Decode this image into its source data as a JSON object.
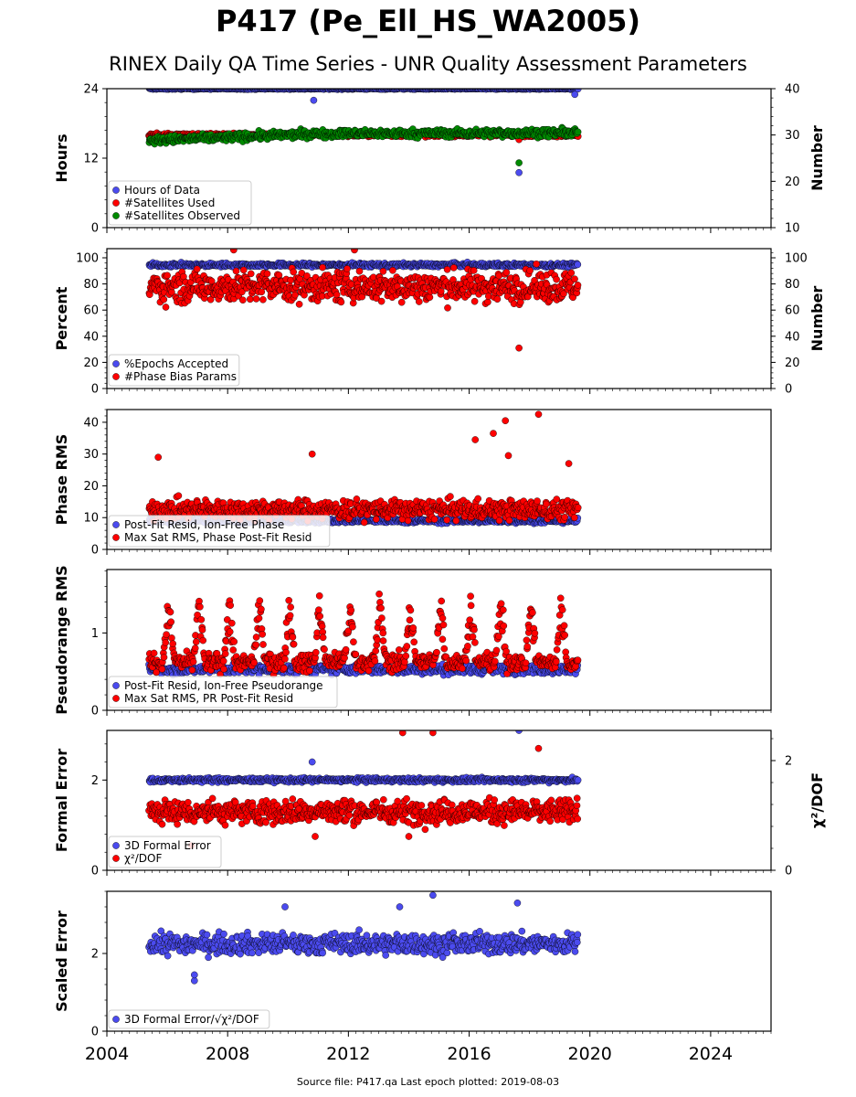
{
  "title": "P417 (Pe_Ell_HS_WA2005)",
  "subtitle": "RINEX Daily QA Time Series - UNR Quality Assessment Parameters",
  "source_note": "Source file: P417.qa Last epoch plotted: 2019-08-03",
  "colors": {
    "blue": "#4b4bef",
    "red": "#ff0000",
    "green": "#008a00",
    "edge": "#000000"
  },
  "chart_data": [
    {
      "type": "scatter",
      "ylabel": "Hours",
      "ylim": [
        0,
        24
      ],
      "yticks": [
        0,
        12,
        24
      ],
      "y2label": "Number",
      "y2lim": [
        10,
        40
      ],
      "y2ticks": [
        10,
        20,
        30,
        40
      ],
      "xlim": [
        2004,
        2026
      ],
      "legend": "lower-left",
      "series": [
        {
          "name": "Hours of Data",
          "color": "blue",
          "axis": "left",
          "mean": 24,
          "spread": 0.1,
          "x_range": [
            2005.4,
            2019.6
          ],
          "outliers": [
            [
              2010.85,
              22
            ],
            [
              2017.65,
              9.5
            ],
            [
              2019.5,
              23
            ]
          ]
        },
        {
          "name": "#Satellites Used",
          "color": "red",
          "axis": "right",
          "mean": 30,
          "spread": 0.3,
          "x_range": [
            2005.4,
            2019.6
          ],
          "outliers": [
            [
              2009.7,
              30.5
            ],
            [
              2017.65,
              29
            ]
          ]
        },
        {
          "name": "#Satellites Observed",
          "color": "green",
          "axis": "right",
          "trend": [
            [
              2005.4,
              28.8
            ],
            [
              2008,
              29.5
            ],
            [
              2011,
              30.3
            ],
            [
              2019.6,
              30.5
            ]
          ],
          "spread": 0.7,
          "x_range": [
            2005.4,
            2019.6
          ],
          "outliers": [
            [
              2017.65,
              24
            ]
          ]
        }
      ]
    },
    {
      "type": "scatter",
      "ylabel": "Percent",
      "ylim": [
        0,
        107
      ],
      "yticks": [
        0,
        20,
        40,
        60,
        80,
        100
      ],
      "y2label": "Number",
      "y2lim": [
        0,
        107
      ],
      "y2ticks": [
        0,
        20,
        40,
        60,
        80,
        100
      ],
      "xlim": [
        2004,
        2026
      ],
      "legend": "lower-left",
      "series": [
        {
          "name": "%Epochs Accepted",
          "color": "blue",
          "axis": "left",
          "mean": 94.5,
          "spread": 1.2,
          "x_range": [
            2005.4,
            2019.6
          ],
          "outliers": []
        },
        {
          "name": "#Phase Bias Params",
          "color": "red",
          "axis": "right",
          "mean": 78,
          "spread": 10,
          "x_range": [
            2005.4,
            2019.6
          ],
          "outliers": [
            [
              2017.65,
              31
            ],
            [
              2008.2,
              106
            ],
            [
              2012.2,
              106
            ]
          ]
        }
      ]
    },
    {
      "type": "scatter",
      "ylabel": "Phase RMS",
      "ylim": [
        0,
        44
      ],
      "yticks": [
        0,
        10,
        20,
        30,
        40
      ],
      "xlim": [
        2004,
        2026
      ],
      "legend": "lower-left",
      "series": [
        {
          "name": "Post-Fit Resid, Ion-Free Phase",
          "color": "blue",
          "axis": "left",
          "mean": 9,
          "spread": 0.6,
          "x_range": [
            2005.4,
            2019.6
          ],
          "outliers": []
        },
        {
          "name": "Max Sat RMS, Phase Post-Fit Resid",
          "color": "red",
          "axis": "left",
          "mean": 12.5,
          "spread": 2.6,
          "x_range": [
            2005.4,
            2019.6
          ],
          "outliers": [
            [
              2005.7,
              29
            ],
            [
              2010.8,
              30
            ],
            [
              2016.2,
              34.5
            ],
            [
              2016.8,
              36.5
            ],
            [
              2017.2,
              40.5
            ],
            [
              2018.3,
              42.5
            ],
            [
              2017.3,
              29.5
            ],
            [
              2019.3,
              27
            ]
          ]
        }
      ]
    },
    {
      "type": "scatter",
      "ylabel": "Pseudorange RMS",
      "ylim": [
        0,
        1.82
      ],
      "yticks": [
        0,
        1
      ],
      "xlim": [
        2004,
        2026
      ],
      "legend": "lower-left",
      "series": [
        {
          "name": "Post-Fit Resid, Ion-Free Pseudorange",
          "color": "blue",
          "axis": "left",
          "mean": 0.53,
          "spread": 0.05,
          "x_range": [
            2005.4,
            2019.6
          ],
          "outliers": []
        },
        {
          "name": "Max Sat RMS, PR Post-Fit Resid",
          "color": "red",
          "axis": "left",
          "seasonal": {
            "base": 0.62,
            "amplitude": 0.78,
            "peak_phase": 0.05
          },
          "spread": 0.1,
          "x_range": [
            2005.4,
            2019.6
          ],
          "outliers": []
        }
      ]
    },
    {
      "type": "scatter",
      "ylabel": "Formal Error",
      "ylim": [
        0,
        3.1
      ],
      "yticks": [
        0,
        2
      ],
      "y2label": "χ²/DOF",
      "y2lim": [
        0,
        2.55
      ],
      "y2ticks": [
        0,
        2
      ],
      "xlim": [
        2004,
        2026
      ],
      "legend": "lower-left",
      "series": [
        {
          "name": "3D Formal Error",
          "color": "blue",
          "axis": "left",
          "mean": 2.0,
          "spread": 0.04,
          "x_range": [
            2005.4,
            2019.6
          ],
          "outliers": [
            [
              2017.65,
              3.1
            ],
            [
              2010.8,
              2.4
            ]
          ]
        },
        {
          "name": "χ²/DOF",
          "color": "red",
          "axis": "left",
          "mean": 1.3,
          "spread": 0.22,
          "x_range": [
            2005.4,
            2019.6
          ],
          "outliers": [
            [
              2013.8,
              3.05
            ],
            [
              2014.8,
              3.05
            ],
            [
              2018.3,
              2.7
            ],
            [
              2006.8,
              0.55
            ],
            [
              2014.0,
              0.75
            ],
            [
              2010.9,
              0.75
            ]
          ]
        }
      ]
    },
    {
      "type": "scatter",
      "ylabel": "Scaled Error",
      "ylim": [
        0,
        3.6
      ],
      "yticks": [
        0,
        2
      ],
      "xlim": [
        2004,
        2026
      ],
      "xticks": [
        2004,
        2008,
        2012,
        2016,
        2020,
        2024
      ],
      "legend": "lower-left",
      "series": [
        {
          "name": "3D Formal Error/√χ²/DOF",
          "color": "blue",
          "axis": "left",
          "mean": 2.25,
          "spread": 0.22,
          "x_range": [
            2005.4,
            2019.6
          ],
          "outliers": [
            [
              2006.9,
              1.3
            ],
            [
              2006.9,
              1.45
            ],
            [
              2014.8,
              3.5
            ],
            [
              2017.6,
              3.3
            ],
            [
              2013.7,
              3.2
            ],
            [
              2009.9,
              3.2
            ]
          ]
        }
      ]
    }
  ]
}
